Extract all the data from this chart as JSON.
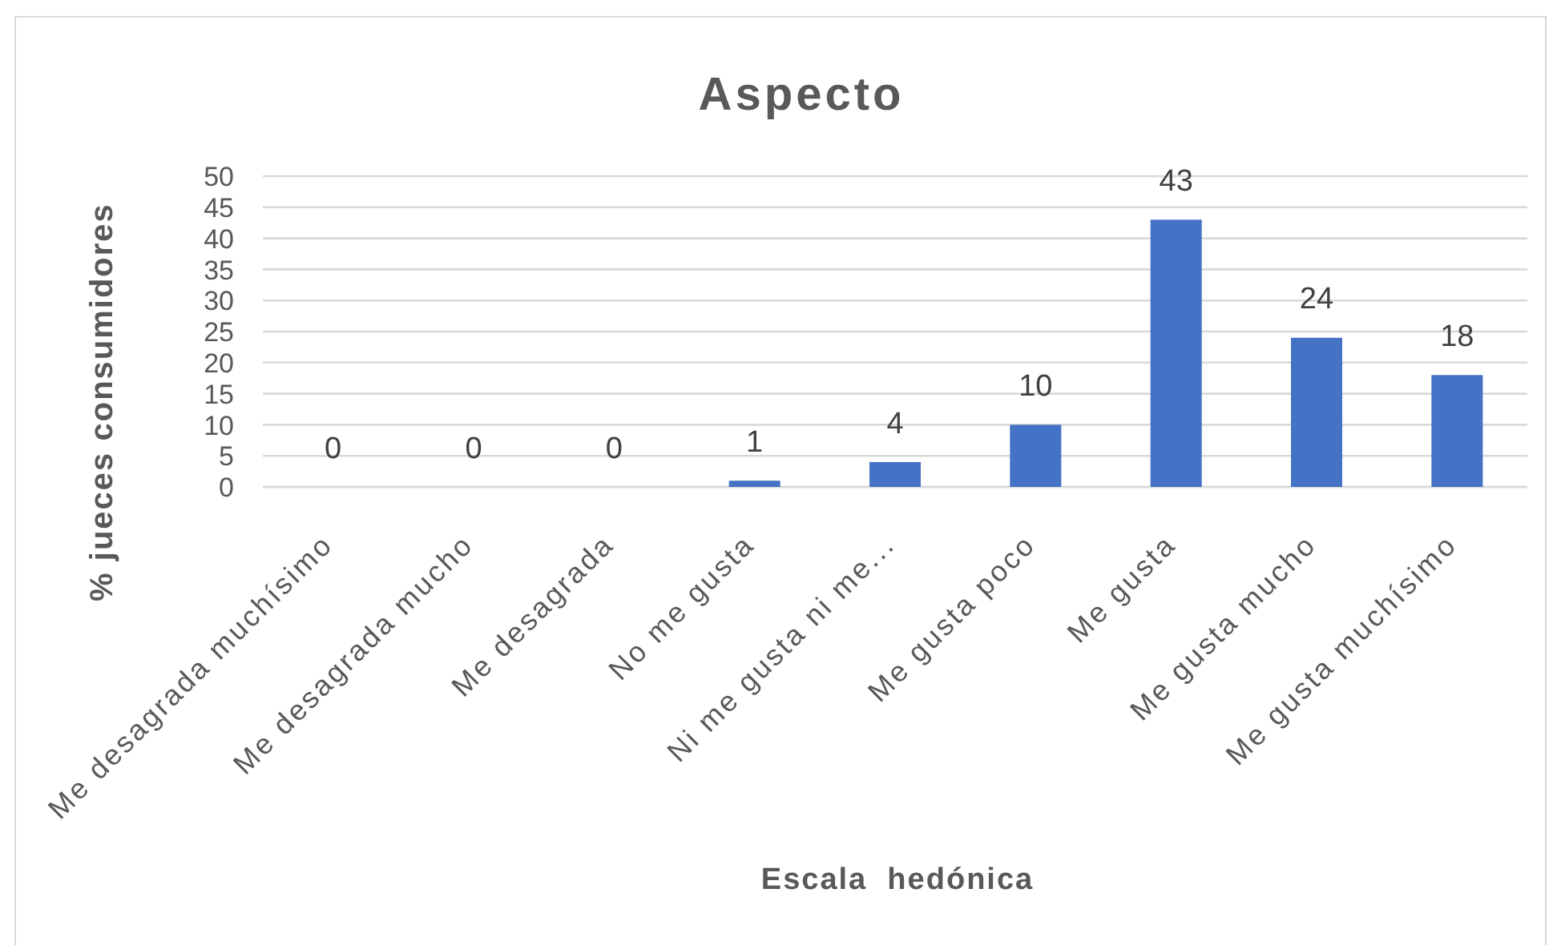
{
  "chart_data": {
    "type": "bar",
    "title": "Aspecto",
    "xlabel": "Escala  hedónica",
    "ylabel": "% jueces consumidores",
    "categories": [
      "Me desagrada muchísimo",
      "Me desagrada mucho",
      "Me desagrada",
      "No me gusta",
      "Ni me gusta ni me...",
      "Me gusta poco",
      "Me gusta",
      "Me gusta mucho",
      "Me gusta muchísimo"
    ],
    "values": [
      0,
      0,
      0,
      1,
      4,
      10,
      43,
      24,
      18
    ],
    "color": "#4472c4",
    "ylim": [
      0,
      50
    ],
    "yticks": [
      0,
      5,
      10,
      15,
      20,
      25,
      30,
      35,
      40,
      45,
      50
    ],
    "grid": "y",
    "data_labels": true
  }
}
